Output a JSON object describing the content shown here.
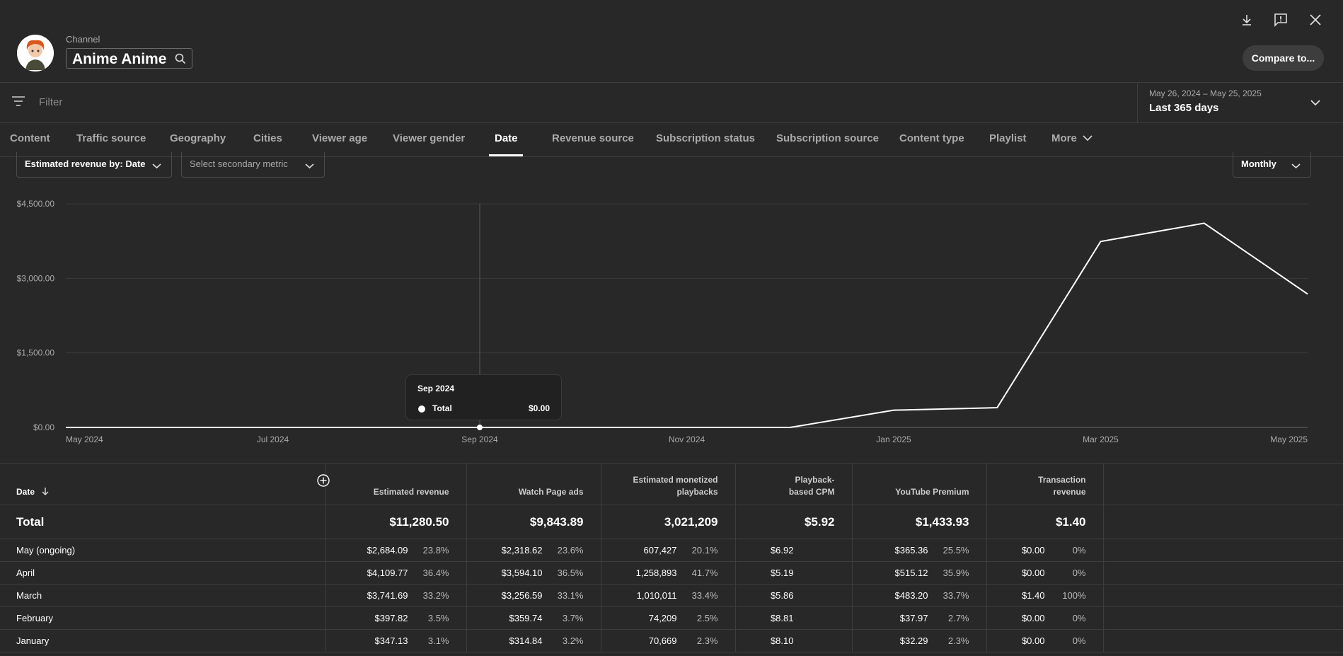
{
  "header": {
    "channel_label": "Channel",
    "channel_name": "Anime Anime",
    "compare_label": "Compare to...",
    "icons": [
      "download-icon",
      "feedback-icon",
      "close-icon"
    ]
  },
  "filter": {
    "placeholder": "Filter"
  },
  "date_picker": {
    "range": "May 26, 2024 – May 25, 2025",
    "period": "Last 365 days"
  },
  "tabs": [
    {
      "label": "Content"
    },
    {
      "label": "Traffic source"
    },
    {
      "label": "Geography"
    },
    {
      "label": "Cities"
    },
    {
      "label": "Viewer age"
    },
    {
      "label": "Viewer gender"
    },
    {
      "label": "Date",
      "active": true
    },
    {
      "label": "Revenue source"
    },
    {
      "label": "Subscription status"
    },
    {
      "label": "Subscription source"
    },
    {
      "label": "Content type"
    },
    {
      "label": "Playlist"
    },
    {
      "label": "More"
    }
  ],
  "selectors": {
    "primary": "Estimated revenue by: Date",
    "secondary": "Select secondary metric",
    "interval": "Monthly"
  },
  "chart_data": {
    "type": "line",
    "x_tick_labels": [
      "May 2024",
      "Jul 2024",
      "Sep 2024",
      "Nov 2024",
      "Jan 2025",
      "Mar 2025",
      "May 2025"
    ],
    "y_tick_labels": [
      "$4,500.00",
      "$3,000.00",
      "$1,500.00",
      "$0.00"
    ],
    "ylim": [
      0,
      4500
    ],
    "grid": true,
    "series": [
      {
        "color": "#ffffff",
        "x": [
          "2024-05",
          "2024-06",
          "2024-07",
          "2024-08",
          "2024-09",
          "2024-10",
          "2024-11",
          "2024-12",
          "2025-01",
          "2025-02",
          "2025-03",
          "2025-04",
          "2025-05"
        ],
        "values": [
          0,
          0,
          0,
          0,
          0,
          0,
          0,
          0,
          347.13,
          397.82,
          3741.69,
          4109.77,
          2684.09
        ]
      }
    ],
    "hover": {
      "index": 4,
      "label": "Sep 2024",
      "series": "Total",
      "value": "$0.00"
    }
  },
  "table": {
    "columns": [
      {
        "label": "Date"
      },
      {
        "label": "Estimated revenue"
      },
      {
        "label": "Watch Page ads"
      },
      {
        "label": "Estimated monetized playbacks"
      },
      {
        "label": "Playback-based CPM"
      },
      {
        "label": "YouTube Premium"
      },
      {
        "label": "Transaction revenue"
      }
    ],
    "total": [
      "Total",
      "$11,280.50",
      "$9,843.89",
      "3,021,209",
      "$5.92",
      "$1,433.93",
      "$1.40"
    ],
    "rows": [
      {
        "date": "May (ongoing)",
        "cells": [
          [
            "$2,684.09",
            "23.8%"
          ],
          [
            "$2,318.62",
            "23.6%"
          ],
          [
            "607,427",
            "20.1%"
          ],
          [
            "$6.92",
            ""
          ],
          [
            "$365.36",
            "25.5%"
          ],
          [
            "$0.00",
            "0%"
          ]
        ]
      },
      {
        "date": "April",
        "cells": [
          [
            "$4,109.77",
            "36.4%"
          ],
          [
            "$3,594.10",
            "36.5%"
          ],
          [
            "1,258,893",
            "41.7%"
          ],
          [
            "$5.19",
            ""
          ],
          [
            "$515.12",
            "35.9%"
          ],
          [
            "$0.00",
            "0%"
          ]
        ]
      },
      {
        "date": "March",
        "cells": [
          [
            "$3,741.69",
            "33.2%"
          ],
          [
            "$3,256.59",
            "33.1%"
          ],
          [
            "1,010,011",
            "33.4%"
          ],
          [
            "$5.86",
            ""
          ],
          [
            "$483.20",
            "33.7%"
          ],
          [
            "$1.40",
            "100%"
          ]
        ]
      },
      {
        "date": "February",
        "cells": [
          [
            "$397.82",
            "3.5%"
          ],
          [
            "$359.74",
            "3.7%"
          ],
          [
            "74,209",
            "2.5%"
          ],
          [
            "$8.81",
            ""
          ],
          [
            "$37.97",
            "2.7%"
          ],
          [
            "$0.00",
            "0%"
          ]
        ]
      },
      {
        "date": "January",
        "cells": [
          [
            "$347.13",
            "3.1%"
          ],
          [
            "$314.84",
            "3.2%"
          ],
          [
            "70,669",
            "2.3%"
          ],
          [
            "$8.10",
            ""
          ],
          [
            "$32.29",
            "2.3%"
          ],
          [
            "$0.00",
            "0%"
          ]
        ]
      }
    ]
  }
}
